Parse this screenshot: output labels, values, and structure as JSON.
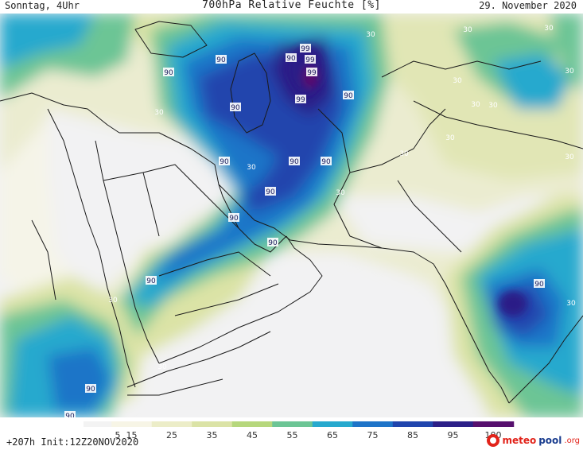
{
  "header": {
    "left": "Sonntag, 4Uhr",
    "title": "700hPa Relative Feuchte [%]",
    "date": "29. November 2020"
  },
  "footer": {
    "run": "+207h  Init:12Z20NOV2020"
  },
  "brand": {
    "name_part1": "meteo",
    "name_part2": "pool",
    "tld": ".org",
    "icon": "meteopool-logo-icon"
  },
  "legend": {
    "ticks": [
      "5",
      "15",
      "25",
      "35",
      "45",
      "55",
      "65",
      "75",
      "85",
      "95",
      "100"
    ],
    "colors": [
      "#f3f3f3",
      "#f7f5e6",
      "#ecedc8",
      "#dbe3a6",
      "#b6d77c",
      "#6cc595",
      "#27a9ce",
      "#1e74c8",
      "#2045ad",
      "#2c1f87",
      "#57106e"
    ]
  },
  "map": {
    "contour_labels": [
      "90",
      "90",
      "90",
      "90",
      "99",
      "99",
      "99",
      "99",
      "90",
      "90",
      "90",
      "90",
      "90",
      "90",
      "90",
      "90",
      "90",
      "90",
      "90",
      "30",
      "30",
      "30",
      "30",
      "30",
      "30",
      "30",
      "30",
      "30",
      "30",
      "30",
      "30",
      "30",
      "30",
      "30",
      "30"
    ]
  }
}
